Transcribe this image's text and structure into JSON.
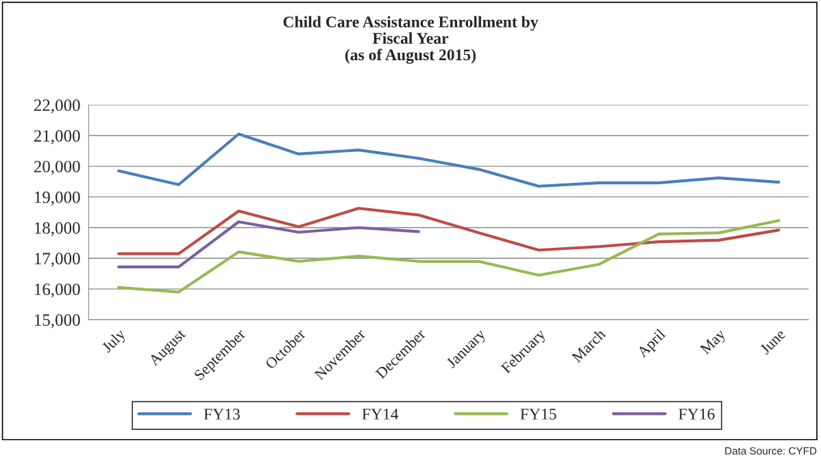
{
  "chart_data": {
    "type": "line",
    "title": "Child Care Assistance Enrollment by\nFiscal Year\n(as of August 2015)",
    "categories": [
      "July",
      "August",
      "September",
      "October",
      "November",
      "December",
      "January",
      "February",
      "March",
      "April",
      "May",
      "June"
    ],
    "series": [
      {
        "name": "FY13",
        "color": "#4a7ebb",
        "values": [
          19850,
          19400,
          21050,
          20400,
          20530,
          20260,
          19900,
          19350,
          19460,
          19460,
          19620,
          19480
        ]
      },
      {
        "name": "FY14",
        "color": "#be4b48",
        "values": [
          17150,
          17150,
          18540,
          18030,
          18630,
          18410,
          17830,
          17270,
          17380,
          17540,
          17590,
          17920
        ]
      },
      {
        "name": "FY15",
        "color": "#98b954",
        "values": [
          16050,
          15900,
          17210,
          16900,
          17070,
          16900,
          16900,
          16450,
          16800,
          17790,
          17830,
          18230
        ]
      },
      {
        "name": "FY16",
        "color": "#7d60a0",
        "values": [
          16720,
          16720,
          18190,
          17850,
          18000,
          17870,
          null,
          null,
          null,
          null,
          null,
          null
        ]
      }
    ],
    "ylim": [
      15000,
      22000
    ],
    "yticks": [
      {
        "value": 15000,
        "label": "15,000"
      },
      {
        "value": 16000,
        "label": "16,000"
      },
      {
        "value": 17000,
        "label": "17,000"
      },
      {
        "value": 18000,
        "label": "18,000"
      },
      {
        "value": 19000,
        "label": "19,000"
      },
      {
        "value": 20000,
        "label": "20,000"
      },
      {
        "value": 21000,
        "label": "21,000"
      },
      {
        "value": 22000,
        "label": "22,000"
      }
    ],
    "grid": "y",
    "legend": "bottom",
    "marker": "none",
    "line_style": "solid",
    "annotations": [
      "Data Source: CYFD"
    ]
  }
}
